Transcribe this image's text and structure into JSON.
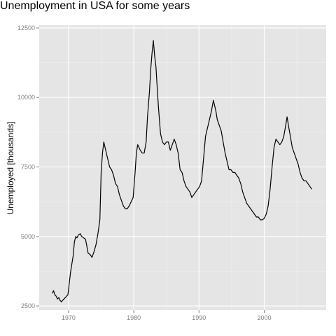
{
  "chart_data": {
    "type": "line",
    "title": "Unemployment in USA for some years",
    "xlabel": "",
    "ylabel": "Unemployed [thousands]",
    "xlim": [
      1965.5,
      2009.5
    ],
    "ylim": [
      2350,
      12600
    ],
    "x_ticks": [
      1970,
      1980,
      1990,
      2000
    ],
    "y_ticks": [
      2500,
      5000,
      7500,
      10000,
      12500
    ],
    "grid": true,
    "legend": "none",
    "colors": {
      "panel": "#e5e5e5",
      "grid": "#ffffff",
      "line": "#000000",
      "tick_text": "#7f7f7f"
    },
    "series": [
      {
        "x": [
          1967.5,
          1967.7,
          1967.9,
          1968.1,
          1968.3,
          1968.5,
          1968.7,
          1968.9,
          1969.1,
          1969.3,
          1969.5,
          1969.7,
          1969.9,
          1970.1,
          1970.3,
          1970.5,
          1970.7,
          1970.9,
          1971.1,
          1971.3,
          1971.5,
          1971.8,
          1972.0,
          1972.3,
          1972.6,
          1973.0,
          1973.3,
          1973.6,
          1973.9,
          1974.2,
          1974.5,
          1974.8,
          1975.0,
          1975.2,
          1975.4,
          1975.6,
          1976.0,
          1976.3,
          1976.6,
          1976.9,
          1977.2,
          1977.5,
          1977.8,
          1978.1,
          1978.4,
          1978.7,
          1979.0,
          1979.3,
          1979.6,
          1979.9,
          1980.2,
          1980.4,
          1980.6,
          1980.8,
          1981.0,
          1981.3,
          1981.6,
          1981.9,
          1982.1,
          1982.4,
          1982.6,
          1982.8,
          1983.0,
          1983.2,
          1983.4,
          1983.6,
          1983.8,
          1984.1,
          1984.4,
          1984.7,
          1985.0,
          1985.3,
          1985.6,
          1985.9,
          1986.2,
          1986.5,
          1986.8,
          1987.1,
          1987.4,
          1987.7,
          1988.0,
          1988.3,
          1988.6,
          1988.9,
          1989.2,
          1989.5,
          1989.8,
          1990.1,
          1990.4,
          1990.7,
          1991.0,
          1991.3,
          1991.6,
          1991.9,
          1992.2,
          1992.4,
          1992.6,
          1992.8,
          1993.1,
          1993.4,
          1993.7,
          1994.0,
          1994.3,
          1994.6,
          1994.9,
          1995.2,
          1995.5,
          1995.8,
          1996.1,
          1996.4,
          1996.7,
          1997.0,
          1997.3,
          1997.6,
          1997.9,
          1998.2,
          1998.5,
          1998.8,
          1999.1,
          1999.4,
          1999.7,
          2000.0,
          2000.3,
          2000.6,
          2000.9,
          2001.2,
          2001.5,
          2001.8,
          2002.1,
          2002.4,
          2002.7,
          2003.0,
          2003.3,
          2003.5,
          2003.7,
          2004.0,
          2004.3,
          2004.6,
          2004.9,
          2005.2,
          2005.5,
          2005.8,
          2006.1,
          2006.4,
          2006.7,
          2007.0,
          2007.3
        ],
        "y": [
          2950,
          3050,
          2900,
          2850,
          2750,
          2800,
          2700,
          2650,
          2700,
          2750,
          2800,
          2850,
          2900,
          3300,
          3700,
          4000,
          4300,
          4800,
          5000,
          4950,
          5050,
          5100,
          5000,
          4950,
          4900,
          4400,
          4350,
          4250,
          4450,
          4700,
          5100,
          5600,
          7300,
          8000,
          8400,
          8200,
          7800,
          7500,
          7400,
          7200,
          6900,
          6800,
          6500,
          6300,
          6100,
          6000,
          6000,
          6100,
          6250,
          6400,
          7300,
          8000,
          8300,
          8200,
          8100,
          8000,
          8000,
          8400,
          9300,
          10200,
          11000,
          11600,
          12050,
          11500,
          11100,
          10300,
          9600,
          8700,
          8400,
          8300,
          8400,
          8400,
          8100,
          8300,
          8500,
          8300,
          8000,
          7400,
          7300,
          7000,
          6800,
          6700,
          6600,
          6400,
          6500,
          6600,
          6700,
          6800,
          7000,
          7800,
          8600,
          8900,
          9200,
          9500,
          9900,
          9700,
          9500,
          9200,
          9000,
          8800,
          8400,
          8000,
          7700,
          7400,
          7400,
          7300,
          7300,
          7200,
          7100,
          6900,
          6600,
          6400,
          6200,
          6100,
          6000,
          5900,
          5800,
          5700,
          5700,
          5600,
          5600,
          5650,
          5800,
          6100,
          6700,
          7500,
          8200,
          8500,
          8400,
          8300,
          8400,
          8600,
          9000,
          9300,
          9000,
          8600,
          8200,
          8000,
          7800,
          7600,
          7300,
          7100,
          7000,
          7000,
          6900,
          6800,
          6700
        ]
      }
    ]
  }
}
